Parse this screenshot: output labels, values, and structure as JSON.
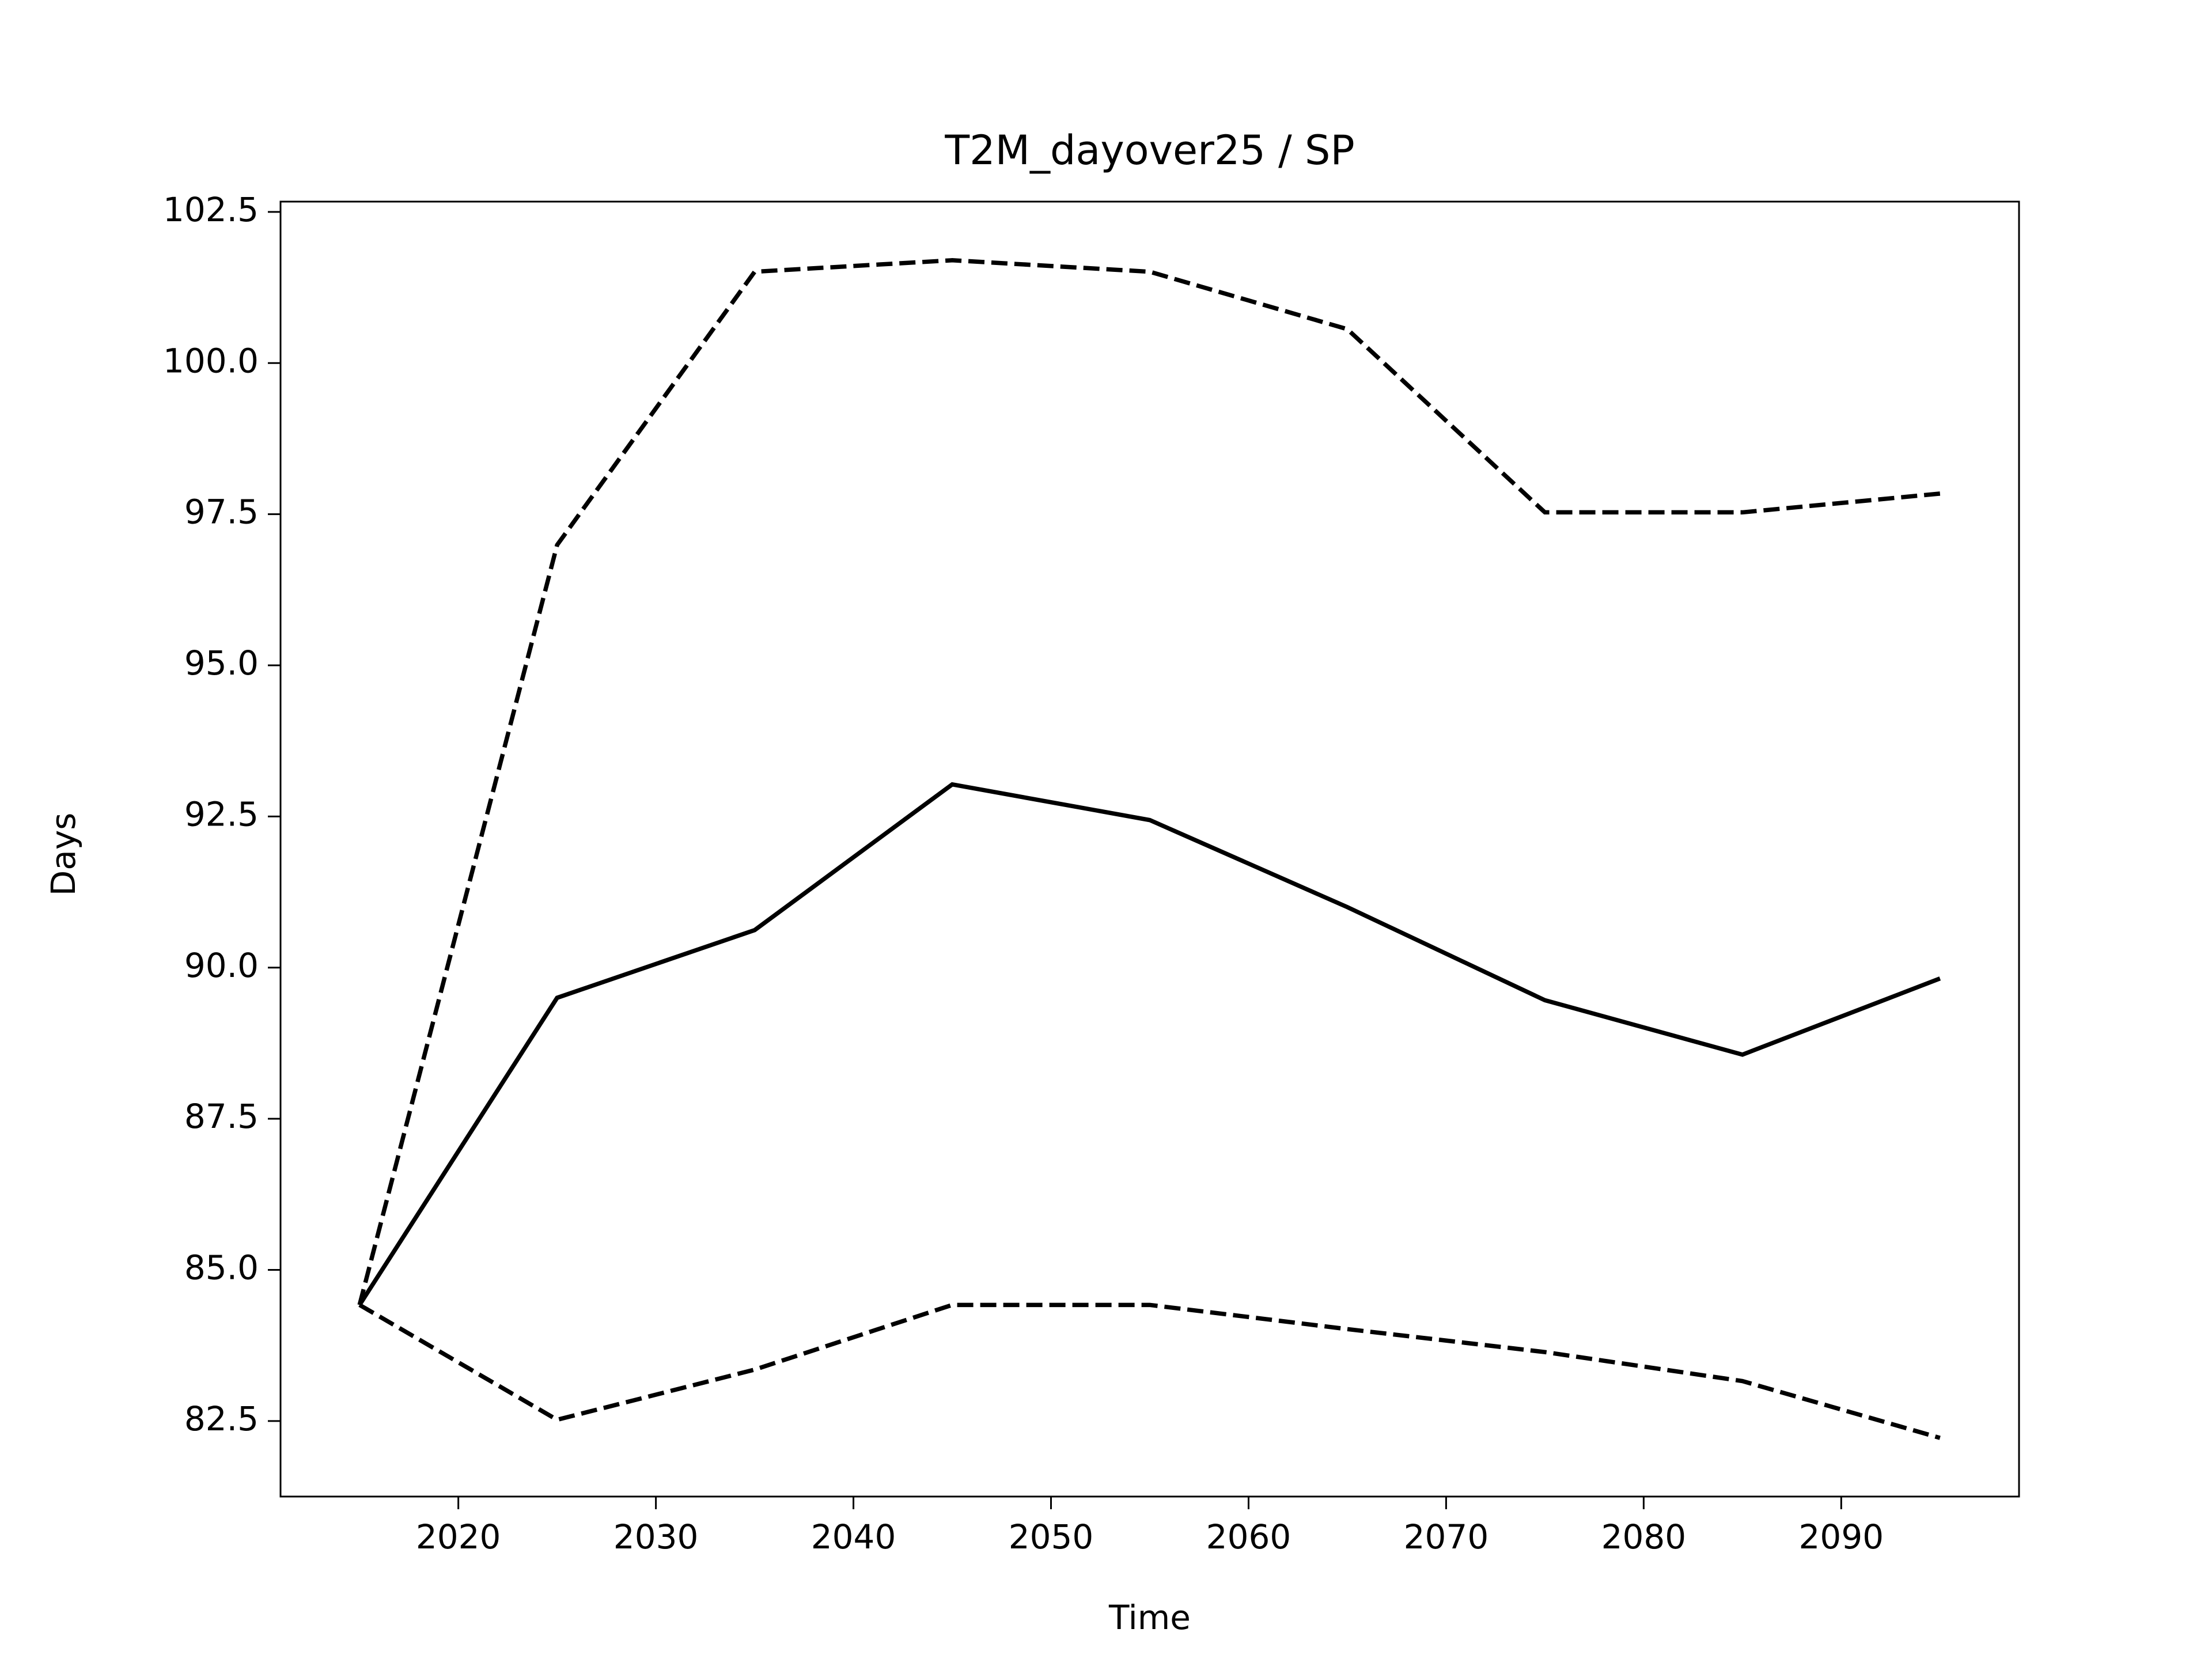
{
  "chart_data": {
    "type": "line",
    "title": "T2M_dayover25 / SP",
    "x_label": "Time",
    "y_label": "Days",
    "x": [
      2015,
      2025,
      2035,
      2045,
      2055,
      2065,
      2075,
      2085,
      2095
    ],
    "series": [
      {
        "color": "#000000",
        "line_style": "solid",
        "values": [
          84.42,
          89.5,
          90.62,
          93.03,
          92.44,
          91.0,
          89.46,
          88.56,
          89.82
        ]
      },
      {
        "color": "#000000",
        "line_style": "dashed",
        "values": [
          84.42,
          96.99,
          101.51,
          101.7,
          101.51,
          100.56,
          97.53,
          97.53,
          97.84
        ]
      },
      {
        "color": "#000000",
        "line_style": "dashed",
        "values": [
          84.42,
          82.52,
          83.35,
          84.42,
          84.42,
          84.02,
          83.64,
          83.16,
          82.22
        ]
      }
    ],
    "xlim": [
      2011,
      2099
    ],
    "xticks": [
      2020,
      2030,
      2040,
      2050,
      2060,
      2070,
      2080,
      2090
    ],
    "ylim": [
      81.25,
      102.67
    ],
    "yticks": [
      82.5,
      {
        "value": 85,
        "label": "85.0"
      },
      87.5,
      {
        "value": 90,
        "label": "90.0"
      },
      92.5,
      {
        "value": 95,
        "label": "95.0"
      },
      97.5,
      {
        "value": 100,
        "label": "100.0"
      },
      102.5
    ],
    "grid": false
  }
}
